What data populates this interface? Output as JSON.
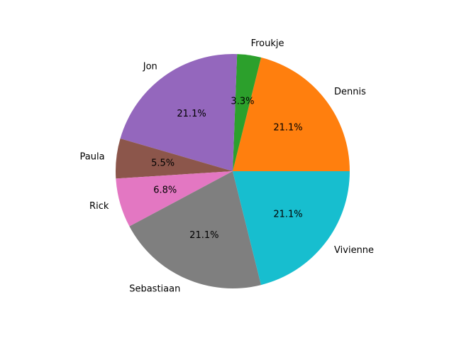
{
  "chart_data": {
    "type": "pie",
    "categories": [
      "Dennis",
      "Froukje",
      "Jon",
      "Paula",
      "Rick",
      "Sebastiaan",
      "Vivienne"
    ],
    "values": [
      21.1,
      3.3,
      21.1,
      5.5,
      6.8,
      21.1,
      21.1
    ],
    "percent_labels": [
      "21.1%",
      "3.3%",
      "21.1%",
      "5.5%",
      "6.8%",
      "21.1%",
      "21.1%"
    ],
    "colors": [
      "#ff7f0e",
      "#2ca02c",
      "#9467bd",
      "#8c564b",
      "#e377c2",
      "#7f7f7f",
      "#17becf"
    ],
    "start_angle_deg": 0,
    "direction": "counterclockwise",
    "title": "",
    "legend": "none"
  }
}
